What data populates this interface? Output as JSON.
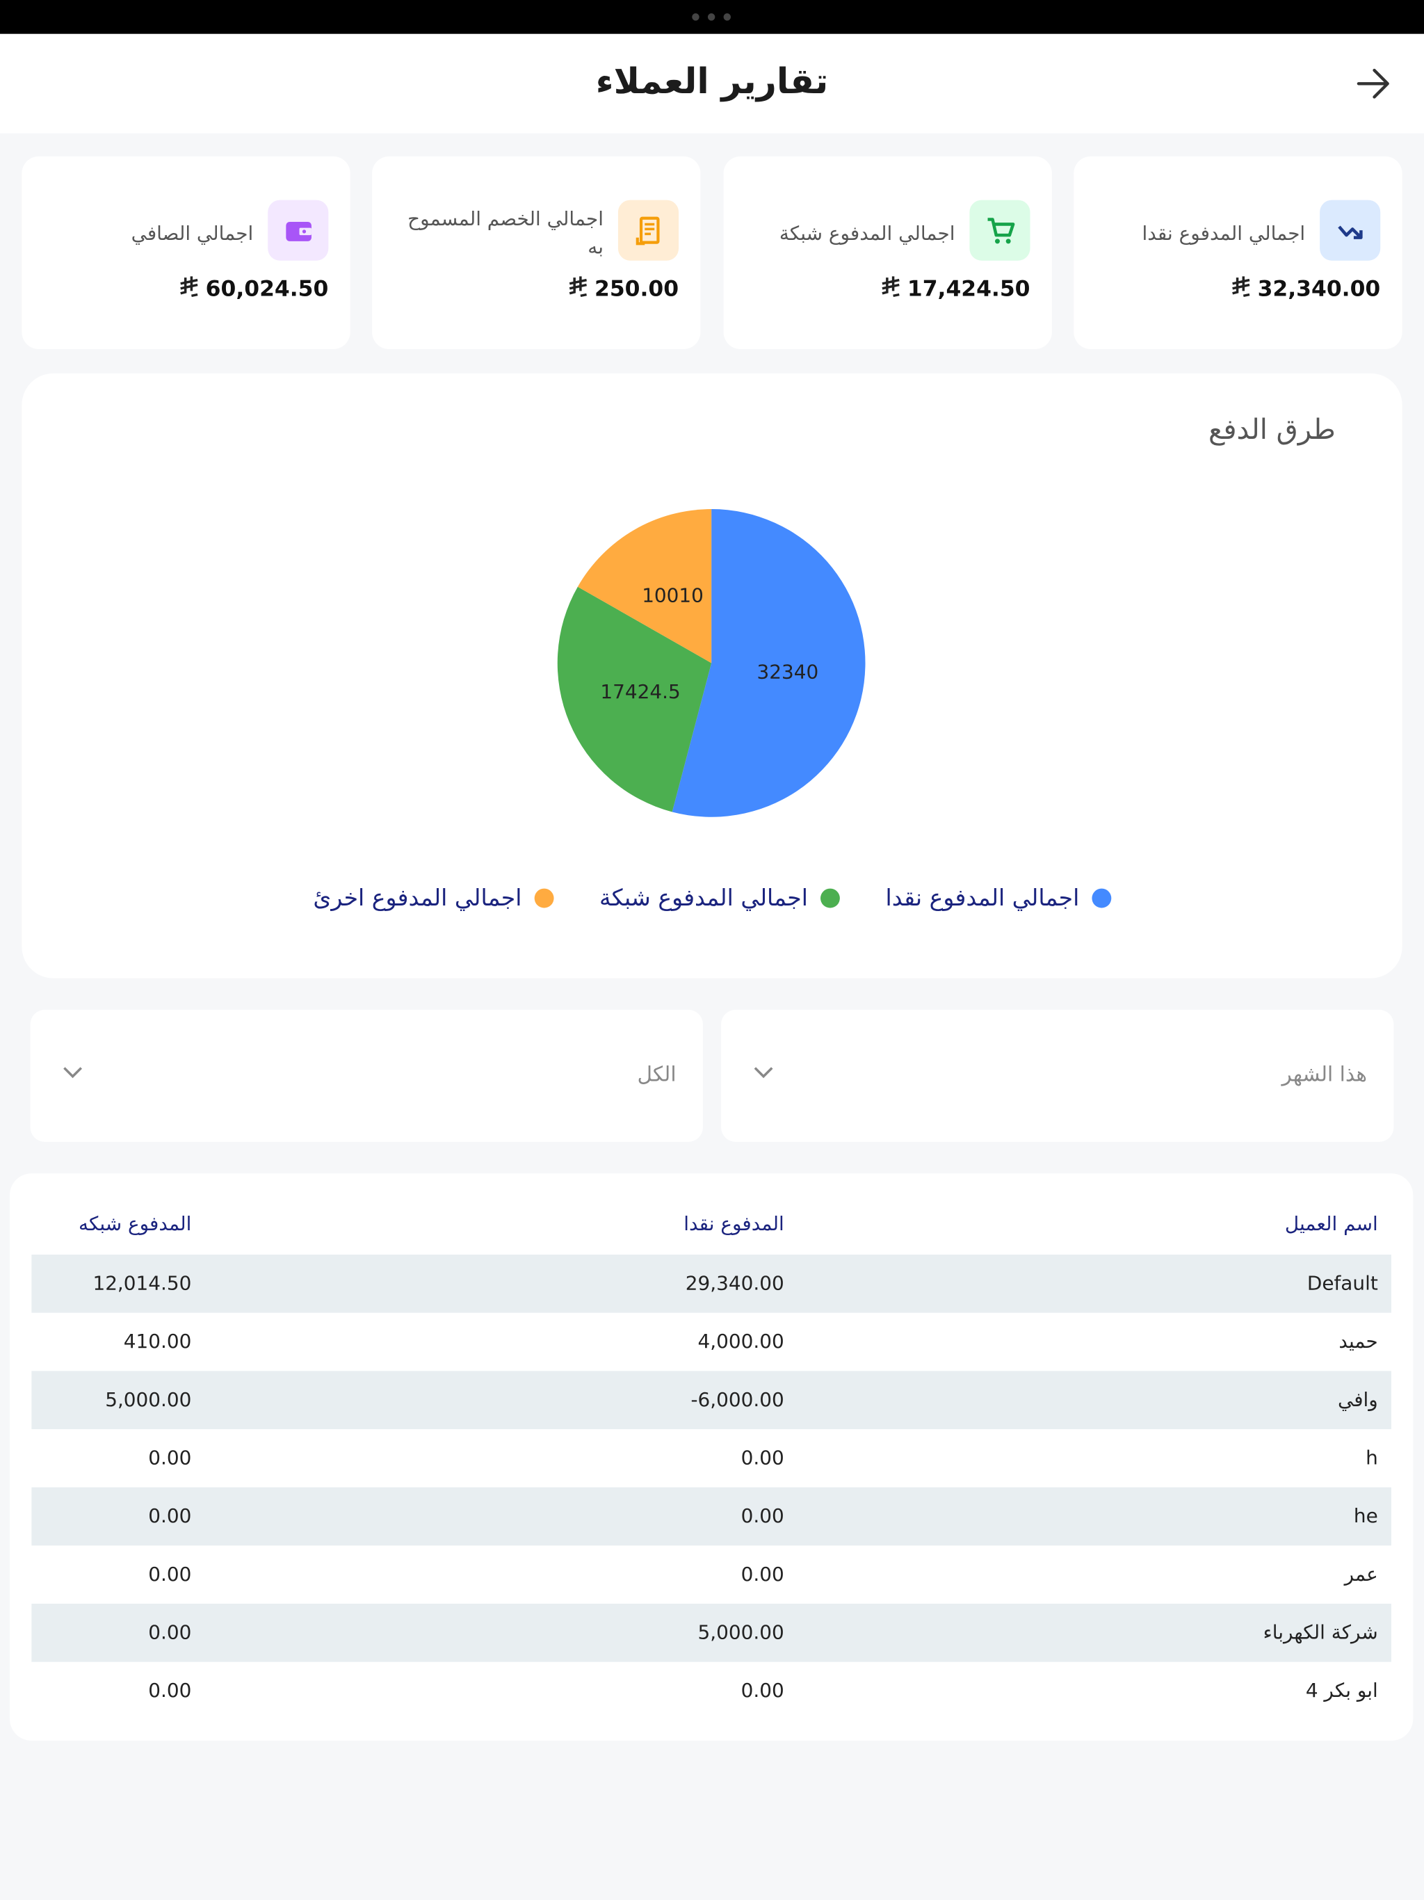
{
  "header": {
    "title": "تقارير العملاء"
  },
  "cards": [
    {
      "label": "اجمالي المدفوع نقدا",
      "value": "32,340.00"
    },
    {
      "label": "اجمالي المدفوع شبكة",
      "value": "17,424.50"
    },
    {
      "label": "اجمالي الخصم المسموح به",
      "value": "250.00"
    },
    {
      "label": "اجمالي الصافي",
      "value": "60,024.50"
    }
  ],
  "chart_data": {
    "type": "pie",
    "title": "طرق الدفع",
    "categories": [
      "اجمالي المدفوع نقدا",
      "اجمالي المدفوع شبكة",
      "اجمالي المدفوع اخرئ"
    ],
    "values": [
      32340,
      17424.5,
      10010
    ],
    "colors": [
      "#448aff",
      "#4caf50",
      "#ffab40"
    ]
  },
  "filters": [
    {
      "label": "هذا الشهر"
    },
    {
      "label": "الكل"
    }
  ],
  "table": {
    "columns": [
      "اسم العميل",
      "المدفوع نقدا",
      "المدفوع شبكه"
    ],
    "rows": [
      [
        "Default",
        "29,340.00",
        "12,014.50"
      ],
      [
        "حميد",
        "4,000.00",
        "410.00"
      ],
      [
        "وافي",
        "6,000.00-",
        "5,000.00"
      ],
      [
        "h",
        "0.00",
        "0.00"
      ],
      [
        "he",
        "0.00",
        "0.00"
      ],
      [
        "عمر",
        "0.00",
        "0.00"
      ],
      [
        "شركة الكهرباء",
        "5,000.00",
        "0.00"
      ],
      [
        "ابو بكر 4",
        "0.00",
        "0.00"
      ]
    ]
  }
}
